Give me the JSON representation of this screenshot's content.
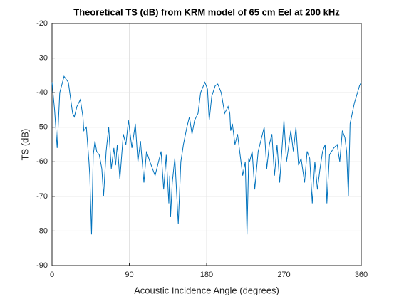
{
  "chart_data": {
    "type": "line",
    "title": "Theoretical TS (dB) from KRM model of 65 cm Eel at 200 kHz",
    "xlabel": "Acoustic Incidence Angle (degrees)",
    "ylabel": "TS (dB)",
    "color": "#0072bd",
    "grid": true,
    "xlim": [
      0,
      360
    ],
    "xticks": [
      0,
      90,
      180,
      270,
      360
    ],
    "ylim": [
      -90,
      -20
    ],
    "yticks": [
      -90,
      -80,
      -70,
      -60,
      -50,
      -40,
      -30,
      -20
    ],
    "x": [
      0,
      3,
      6,
      9,
      14,
      19,
      24,
      26,
      29,
      33,
      36,
      37,
      40,
      43,
      44,
      46,
      48,
      50,
      52,
      55,
      58,
      60,
      63,
      66,
      69,
      72,
      74,
      76,
      79,
      83,
      86,
      89,
      93,
      97,
      100,
      103,
      107,
      110,
      114,
      117,
      120,
      124,
      127,
      130,
      133,
      136,
      137,
      138,
      140,
      143,
      147,
      150,
      153,
      157,
      160,
      163,
      166,
      170,
      173,
      178,
      181,
      183,
      186,
      190,
      193,
      197,
      201,
      205,
      207,
      208,
      210,
      213,
      216,
      219,
      222,
      225,
      227,
      229,
      230,
      233,
      236,
      240,
      244,
      247,
      250,
      253,
      256,
      259,
      262,
      265,
      270,
      273,
      278,
      281,
      284,
      287,
      290,
      294,
      297,
      300,
      303,
      306,
      309,
      312,
      315,
      318,
      320,
      323,
      328,
      332,
      335,
      338,
      341,
      343,
      345,
      347,
      352,
      358,
      360
    ],
    "values": [
      -37,
      -45,
      -56,
      -40,
      -35.3,
      -37,
      -46,
      -47,
      -44,
      -42,
      -47,
      -51,
      -50,
      -60,
      -64,
      -81,
      -58,
      -54,
      -57,
      -58,
      -62,
      -70,
      -57,
      -50,
      -62,
      -56,
      -61,
      -55,
      -65,
      -52,
      -55,
      -48,
      -56,
      -49,
      -60,
      -54,
      -66,
      -57,
      -60,
      -62,
      -64,
      -60,
      -57,
      -68,
      -58,
      -72,
      -64,
      -76,
      -66,
      -59,
      -78,
      -60,
      -55,
      -50,
      -47,
      -52,
      -48,
      -46,
      -40,
      -37,
      -39,
      -48,
      -41,
      -38,
      -37.5,
      -40,
      -46,
      -44,
      -46,
      -51,
      -49,
      -55,
      -52,
      -58,
      -64,
      -60,
      -81,
      -59,
      -60,
      -57,
      -68,
      -57,
      -53,
      -50,
      -62,
      -55,
      -52,
      -64,
      -55,
      -66,
      -48,
      -60,
      -51,
      -57,
      -50,
      -61,
      -59,
      -66,
      -57,
      -59,
      -72,
      -60,
      -68,
      -62,
      -57,
      -55,
      -72,
      -58,
      -56,
      -55,
      -60,
      -51,
      -53,
      -57,
      -70,
      -49,
      -43,
      -38,
      -37
    ]
  }
}
